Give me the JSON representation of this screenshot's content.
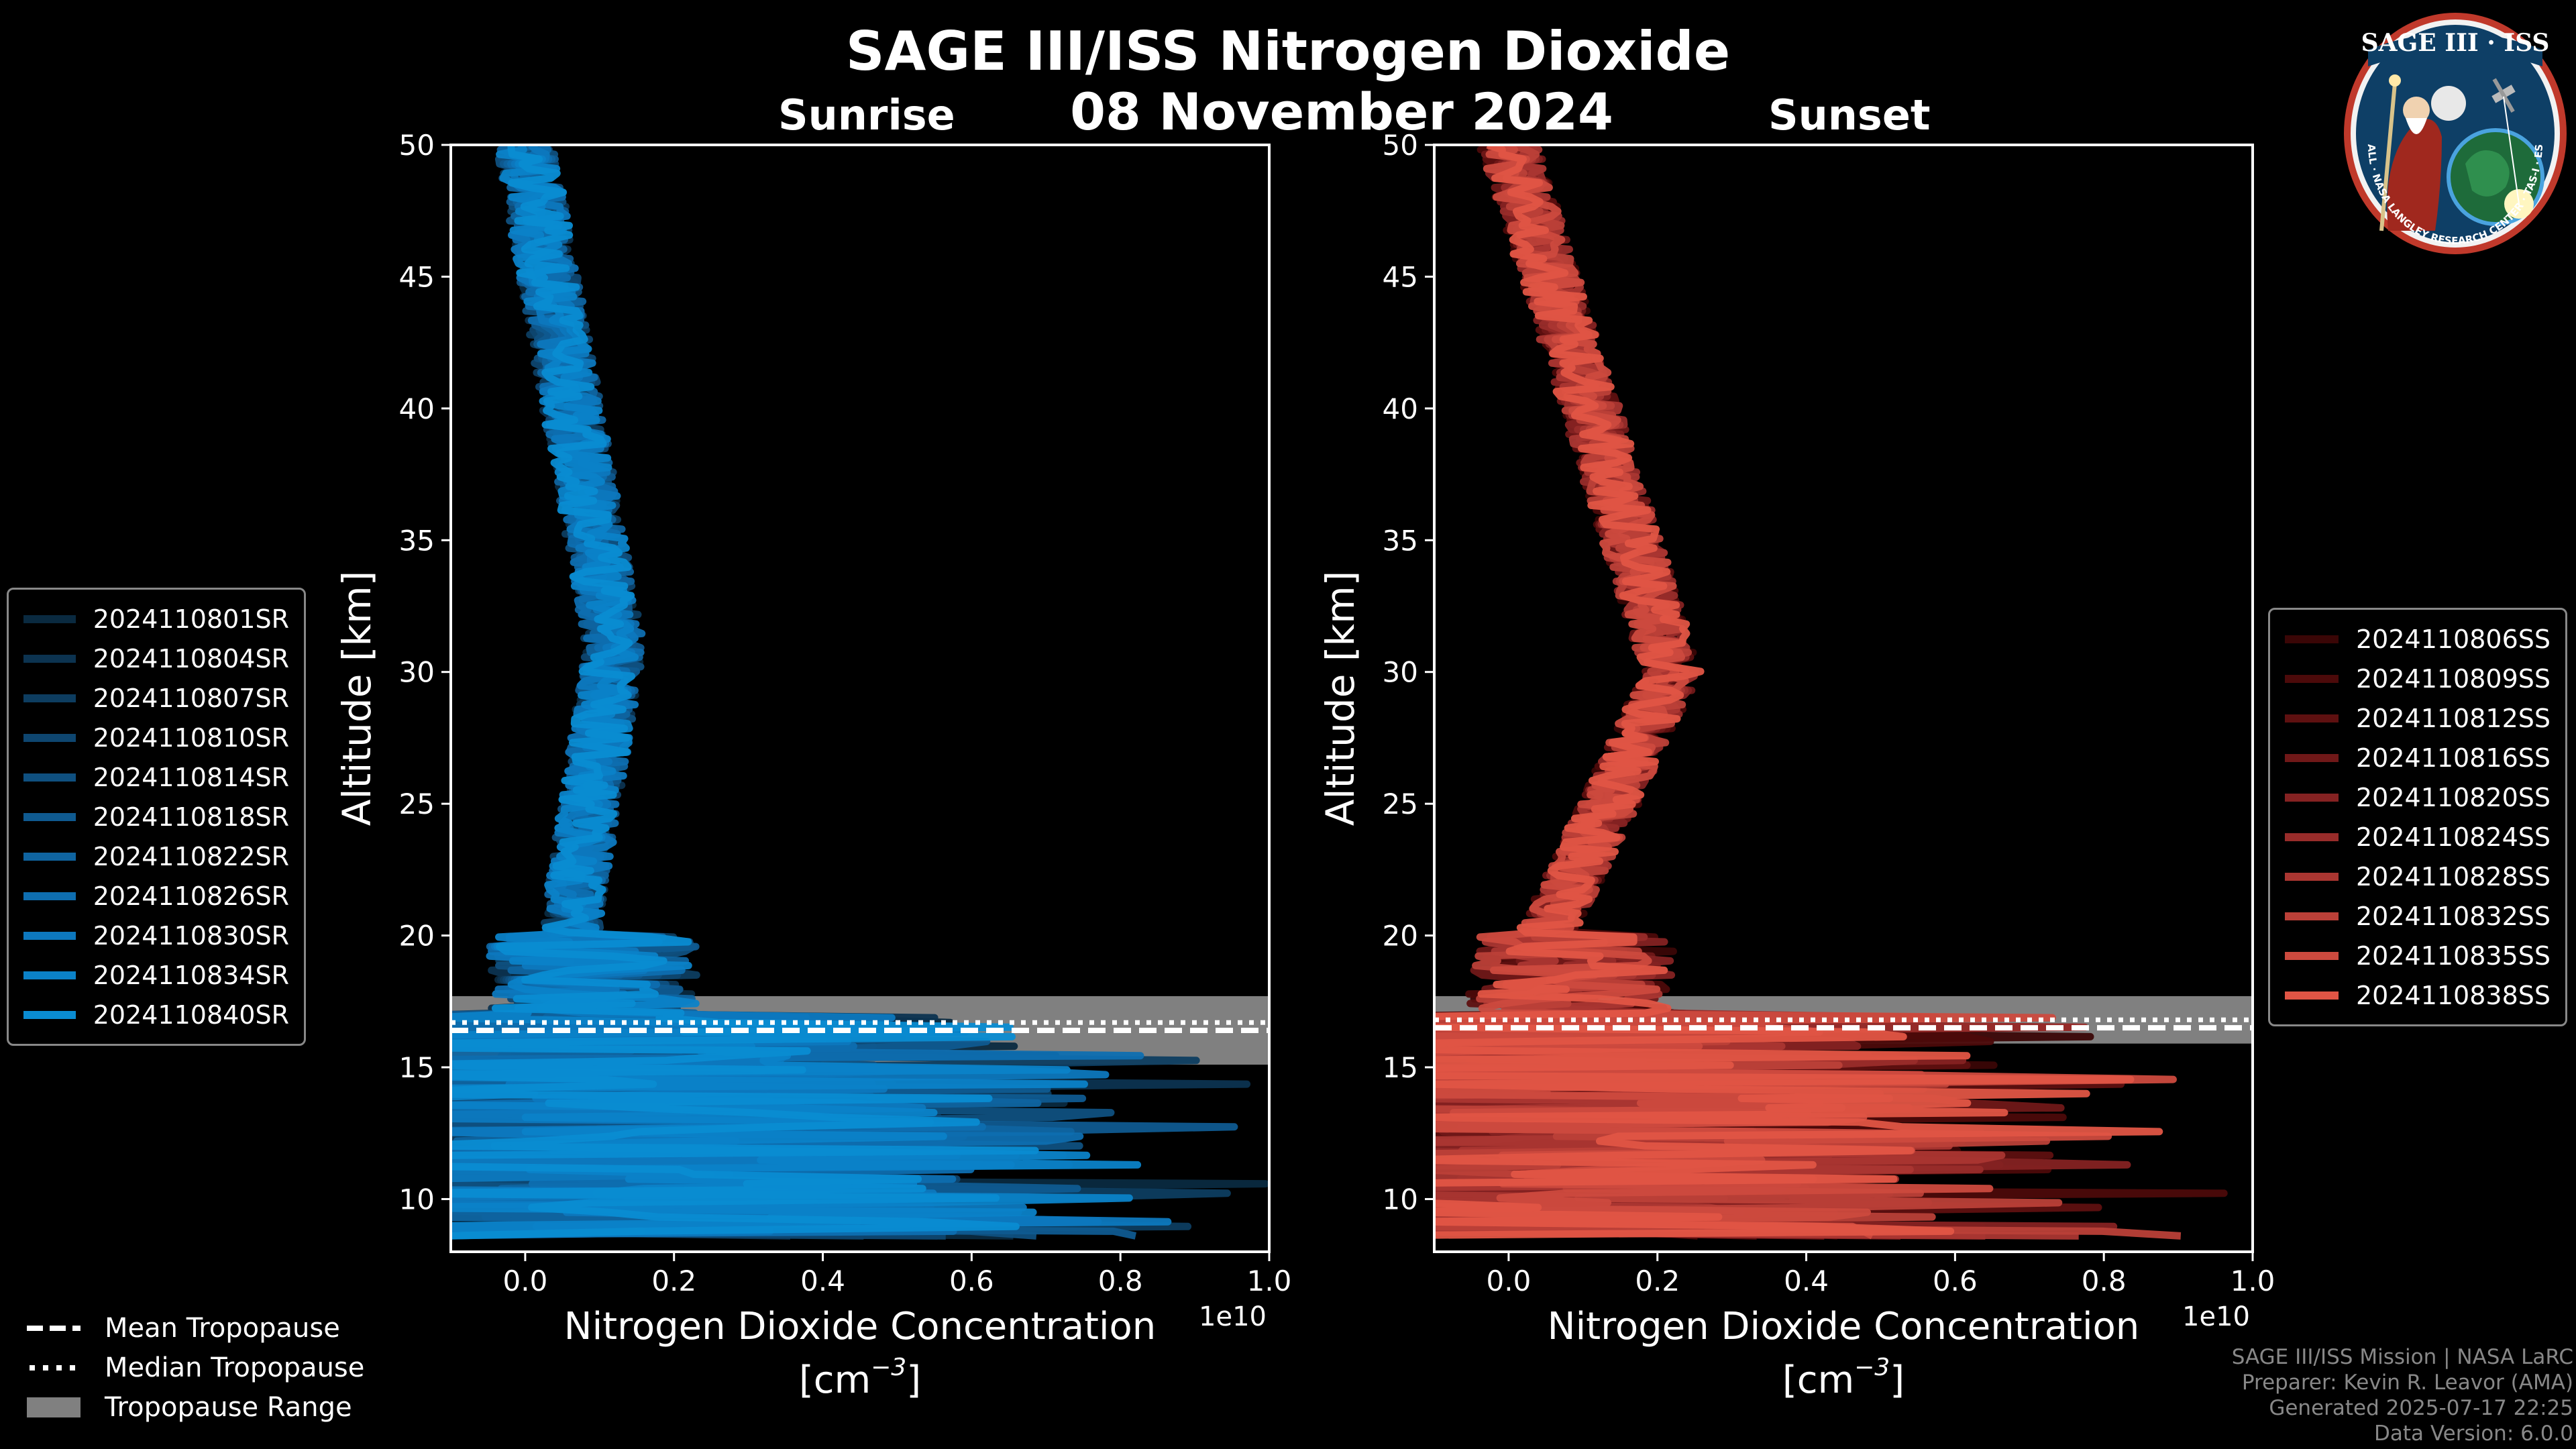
{
  "header": {
    "title": "SAGE III/ISS Nitrogen Dioxide",
    "date": "08 November 2024"
  },
  "colors": {
    "sunrise_accent": "#0a8cd2",
    "sunset_accent": "#e05545",
    "tropopause_band": "#808080",
    "frame": "#ffffff"
  },
  "chart_data": [
    {
      "type": "line",
      "title": "Sunrise",
      "xlabel": "Nitrogen Dioxide Concentration",
      "xlabel_units": "[cm",
      "xlabel_exp": "−3",
      "xlabel_close": "]",
      "ylabel": "Altitude [km]",
      "x_offset_label": "1e10",
      "xlim": [
        -0.1,
        1.0
      ],
      "ylim": [
        8,
        50
      ],
      "xticks": [
        "0.0",
        "0.2",
        "0.4",
        "0.6",
        "0.8",
        "1.0"
      ],
      "xtick_values": [
        0.0,
        0.2,
        0.4,
        0.6,
        0.8,
        1.0
      ],
      "yticks": [
        "10",
        "15",
        "20",
        "25",
        "30",
        "35",
        "40",
        "45",
        "50"
      ],
      "ytick_values": [
        10,
        15,
        20,
        25,
        30,
        35,
        40,
        45,
        50
      ],
      "tropopause": {
        "mean": 16.4,
        "median": 16.7,
        "range": [
          15.1,
          17.7
        ]
      },
      "series": [
        {
          "name": "2024110801SR",
          "color": "#0a2a40",
          "seed": 11
        },
        {
          "name": "2024110804SR",
          "color": "#0c3350",
          "seed": 12
        },
        {
          "name": "2024110807SR",
          "color": "#0d3d60",
          "seed": 13
        },
        {
          "name": "2024110810SR",
          "color": "#0e4670",
          "seed": 14
        },
        {
          "name": "2024110814SR",
          "color": "#0f5080",
          "seed": 15
        },
        {
          "name": "2024110818SR",
          "color": "#0f5a90",
          "seed": 16
        },
        {
          "name": "2024110822SR",
          "color": "#0f64a0",
          "seed": 17
        },
        {
          "name": "2024110826SR",
          "color": "#0e6eb0",
          "seed": 18
        },
        {
          "name": "2024110830SR",
          "color": "#0d78be",
          "seed": 19
        },
        {
          "name": "2024110834SR",
          "color": "#0b82c8",
          "seed": 20
        },
        {
          "name": "2024110840SR",
          "color": "#0a8cd2",
          "seed": 21
        }
      ],
      "profile": {
        "top": 0.0,
        "mid_alt": 31,
        "mid_val": 0.12,
        "low_val": 0.06
      }
    },
    {
      "type": "line",
      "title": "Sunset",
      "xlabel": "Nitrogen Dioxide Concentration",
      "xlabel_units": "[cm",
      "xlabel_exp": "−3",
      "xlabel_close": "]",
      "ylabel": "Altitude [km]",
      "x_offset_label": "1e10",
      "xlim": [
        -0.1,
        1.0
      ],
      "ylim": [
        8,
        50
      ],
      "xticks": [
        "0.0",
        "0.2",
        "0.4",
        "0.6",
        "0.8",
        "1.0"
      ],
      "xtick_values": [
        0.0,
        0.2,
        0.4,
        0.6,
        0.8,
        1.0
      ],
      "yticks": [
        "10",
        "15",
        "20",
        "25",
        "30",
        "35",
        "40",
        "45",
        "50"
      ],
      "ytick_values": [
        10,
        15,
        20,
        25,
        30,
        35,
        40,
        45,
        50
      ],
      "tropopause": {
        "mean": 16.5,
        "median": 16.8,
        "range": [
          15.9,
          17.7
        ]
      },
      "series": [
        {
          "name": "2024110806SS",
          "color": "#3a0606",
          "seed": 31
        },
        {
          "name": "2024110809SS",
          "color": "#4c0a0a",
          "seed": 32
        },
        {
          "name": "2024110812SS",
          "color": "#5e1010",
          "seed": 33
        },
        {
          "name": "2024110816SS",
          "color": "#701818",
          "seed": 34
        },
        {
          "name": "2024110820SS",
          "color": "#852222",
          "seed": 35
        },
        {
          "name": "2024110824SS",
          "color": "#982c2a",
          "seed": 36
        },
        {
          "name": "2024110828SS",
          "color": "#aa3631",
          "seed": 37
        },
        {
          "name": "2024110832SS",
          "color": "#bb4038",
          "seed": 38
        },
        {
          "name": "2024110835SS",
          "color": "#cc4a3e",
          "seed": 39
        },
        {
          "name": "2024110838SS",
          "color": "#e05545",
          "seed": 40
        }
      ],
      "profile": {
        "top": 0.0,
        "mid_alt": 30,
        "mid_val": 0.22,
        "low_val": 0.05
      }
    }
  ],
  "tropopause_legend": {
    "mean": "Mean Tropopause",
    "median": "Median Tropopause",
    "range": "Tropopause Range"
  },
  "footer": {
    "line1": "SAGE III/ISS Mission | NASA LaRC",
    "line2": "Preparer: Kevin R. Leavor (AMA)",
    "line3": "Generated 2025-07-17 22:25",
    "line4": "Data Version: 6.0.0"
  },
  "badge": {
    "title": "SAGE III · ISS",
    "ring": "BALL · NASA LANGLEY RESEARCH CENTER · TAS-I · ESA"
  }
}
